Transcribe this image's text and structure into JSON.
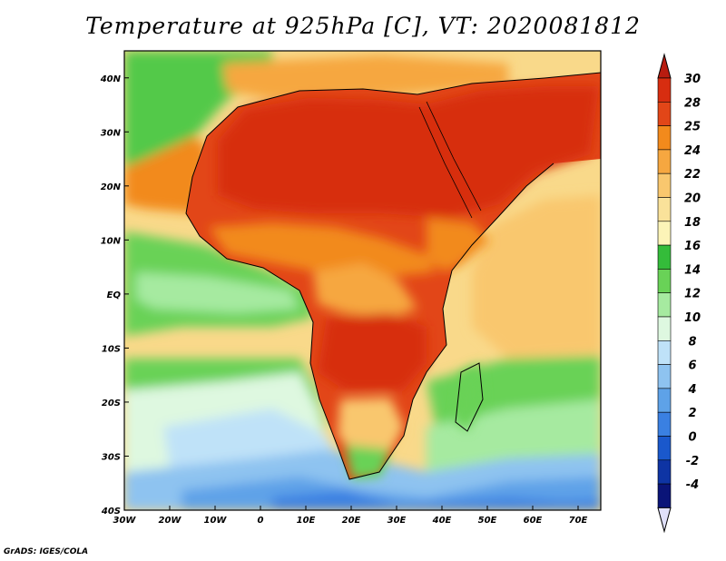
{
  "title": "Temperature at 925hPa [C], VT: 2020081812",
  "footer": "GrADS: IGES/COLA",
  "axes": {
    "lat_labels": [
      "40N",
      "30N",
      "20N",
      "10N",
      "EQ",
      "10S",
      "20S",
      "30S",
      "40S"
    ],
    "lon_labels": [
      "30W",
      "20W",
      "10W",
      "0",
      "10E",
      "20E",
      "30E",
      "40E",
      "50E",
      "60E",
      "70E"
    ],
    "lat_range": [
      -40,
      45
    ],
    "lon_range": [
      -30,
      75
    ]
  },
  "colorbar": {
    "labels": [
      "30",
      "28",
      "25",
      "24",
      "22",
      "20",
      "18",
      "16",
      "14",
      "12",
      "10",
      "8",
      "6",
      "4",
      "2",
      "0",
      "-2",
      "-4"
    ],
    "colors": [
      "#d72d10",
      "#e24618",
      "#f28a1c",
      "#f6a740",
      "#f9c76e",
      "#fae29a",
      "#fcf4b8",
      "#34bc3a",
      "#69d257",
      "#a6eaa0",
      "#def8e0",
      "#bfe2f8",
      "#8ec3f0",
      "#5ea2e8",
      "#3a80e2",
      "#1a58cc",
      "#0e34a4",
      "#0a1478"
    ],
    "top_arrow_color": "#b81c10",
    "bottom_arrow_color": "#e0e0fa"
  },
  "legend": {
    "hot": "#d72d10",
    "warm": "#f28a1c",
    "mild": "#fae29a",
    "green": "#69d257",
    "cool": "#bfe2f8",
    "cold": "#3a80e2"
  }
}
